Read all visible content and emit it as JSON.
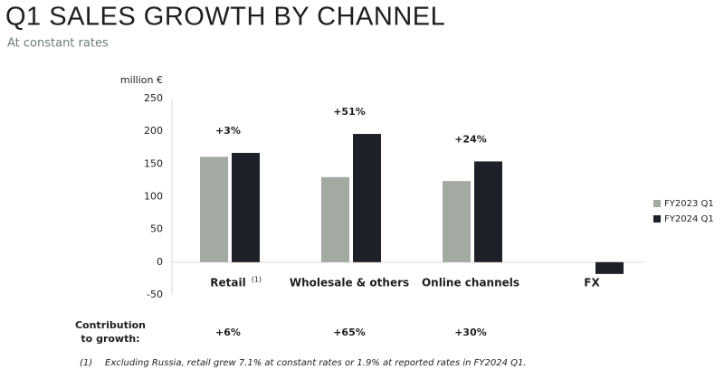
{
  "chart_data": {
    "type": "bar",
    "title": "Q1 SALES GROWTH BY CHANNEL",
    "subtitle": "At constant rates",
    "y_axis_label": "million €",
    "categories": [
      "Retail",
      "Wholesale & others",
      "Online channels",
      "FX"
    ],
    "category_notes": [
      "(1)",
      null,
      null,
      null
    ],
    "series": [
      {
        "name": "FY2023 Q1",
        "color": "#a3aaa2",
        "values": [
          161,
          130,
          124,
          null
        ]
      },
      {
        "name": "FY2024 Q1",
        "color": "#1e2028",
        "values": [
          167,
          196,
          154,
          -18
        ]
      }
    ],
    "growth_labels": [
      "+3%",
      "+51%",
      "+24%",
      null
    ],
    "ylim": [
      -50,
      250
    ],
    "yticks": [
      -50,
      0,
      50,
      100,
      150,
      200,
      250
    ],
    "legend": "right",
    "contribution": {
      "label": [
        "Contribution",
        "to growth:"
      ],
      "values": [
        "+6%",
        "+65%",
        "+30%",
        null
      ]
    },
    "footnote": {
      "mark": "(1)",
      "text": "Excluding Russia, retail grew 7.1% at constant rates or 1.9% at reported rates in FY2024 Q1."
    }
  }
}
